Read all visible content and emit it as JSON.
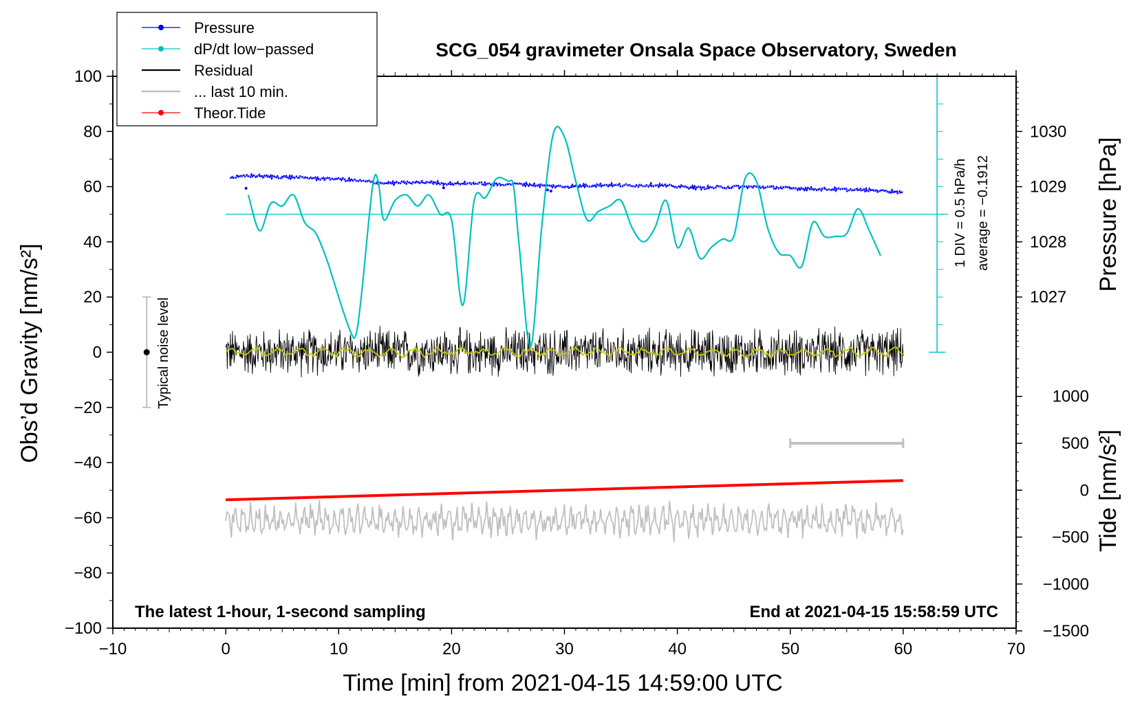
{
  "chart_data": {
    "type": "line",
    "title": "SCG_054 gravimeter Onsala Space Observatory, Sweden",
    "subtitle_left": "The latest 1-hour, 1-second sampling",
    "subtitle_right": "End at 2021-04-15 15:58:59 UTC",
    "xlabel": "Time [min] from 2021-04-15 14:59:00 UTC",
    "ylabel": "Obs’d Gravity [nm/s²]",
    "y2_top_label": "Pressure [hPa]",
    "y2_bottom_label": "Tide [nm/s²]",
    "xlim": [
      -10,
      70
    ],
    "ylim": [
      -100,
      100
    ],
    "pressure_lim": [
      1026,
      1031
    ],
    "tide_lim": [
      -1500,
      1500
    ],
    "x_ticks": [
      "−10",
      "0",
      "10",
      "20",
      "30",
      "40",
      "50",
      "60",
      "70"
    ],
    "y_ticks": [
      "−100",
      "−80",
      "−60",
      "−40",
      "−20",
      "0",
      "20",
      "40",
      "60",
      "80",
      "100"
    ],
    "pressure_ticks": [
      "1027",
      "1028",
      "1029",
      "1030"
    ],
    "tide_ticks": [
      "−1500",
      "−1000",
      "−500",
      "0",
      "500",
      "1000"
    ],
    "legend": [
      {
        "label": "Pressure",
        "color": "#0000ff",
        "marker": true
      },
      {
        "label": "dP/dt low−passed",
        "color": "#00c0c0",
        "marker": true
      },
      {
        "label": "Residual",
        "color": "#000000",
        "marker": false
      },
      {
        "label": "... last 10 min.",
        "color": "#c0c0c0",
        "marker": false
      },
      {
        "label": "Theor.Tide",
        "color": "#ff0000",
        "marker": true
      }
    ],
    "dpdt_scale_label": "1 DIV = 0.5 hPa/h",
    "dpdt_average_label": "average = −0.1912",
    "noise_label": "Typical noise level",
    "noise_range": [
      -20,
      20
    ],
    "series": [
      {
        "name": "Pressure",
        "unit": "hPa",
        "color": "#0000ff",
        "x": [
          0,
          2,
          4,
          6,
          8,
          10,
          12,
          14,
          16,
          18,
          20,
          22,
          24,
          26,
          28,
          30,
          32,
          34,
          36,
          38,
          40,
          42,
          44,
          46,
          48,
          50,
          52,
          54,
          56,
          58,
          60
        ],
        "values": [
          1029.15,
          1029.2,
          1029.18,
          1029.17,
          1029.15,
          1029.14,
          1029.1,
          1029.06,
          1029.07,
          1029.08,
          1029.05,
          1029.06,
          1029.04,
          1029.05,
          1029.02,
          1029.0,
          1029.02,
          1029.03,
          1029.02,
          1029.03,
          1029.0,
          1028.98,
          1028.99,
          1029.0,
          1028.99,
          1028.97,
          1028.96,
          1028.95,
          1028.94,
          1028.93,
          1028.9
        ]
      },
      {
        "name": "dP/dt low-passed",
        "unit": "nm/s² display",
        "color": "#00c0c0",
        "x": [
          2,
          3,
          4,
          5,
          6,
          7,
          8,
          9,
          10,
          11,
          11.5,
          12,
          13,
          13.5,
          14,
          15,
          16,
          17,
          18,
          19,
          20,
          21,
          22,
          23,
          24,
          25,
          25.5,
          26,
          27,
          28,
          29,
          30,
          31,
          32,
          33,
          34,
          35,
          36,
          37,
          38,
          39,
          40,
          41,
          42,
          43,
          44,
          45,
          46,
          47,
          48,
          49,
          50,
          51,
          52,
          53,
          54,
          55,
          56,
          57,
          58
        ],
        "values": [
          57,
          44,
          54,
          53,
          57,
          47,
          43,
          33,
          20,
          8,
          6,
          20,
          60,
          62,
          48,
          55,
          57,
          53,
          57,
          50,
          48,
          17,
          55,
          56,
          63,
          62,
          60,
          38,
          2,
          46,
          79,
          78,
          62,
          48,
          51,
          53,
          55,
          45,
          40,
          45,
          55,
          38,
          45,
          34,
          38,
          41,
          42,
          63,
          62,
          45,
          36,
          35,
          31,
          47,
          42,
          42,
          43,
          52,
          44,
          35
        ]
      },
      {
        "name": "Residual",
        "unit": "nm/s²",
        "color": "#000000",
        "x_range": [
          0,
          60
        ],
        "amplitude": 10,
        "mean": 0
      },
      {
        "name": "Theor.Tide",
        "unit": "nm/s²",
        "color": "#ff0000",
        "x": [
          0,
          60
        ],
        "values": [
          -53.5,
          -46.5
        ]
      },
      {
        "name": "... last 10 min.",
        "unit": "nm/s²",
        "color": "#c0c0c0",
        "x_range": [
          0,
          60
        ],
        "offset": -61,
        "amplitude": 6
      }
    ],
    "window_marker": {
      "x": [
        50,
        60
      ],
      "y": -33,
      "color": "#c0c0c0"
    },
    "dpdt_reference_line": 50
  }
}
